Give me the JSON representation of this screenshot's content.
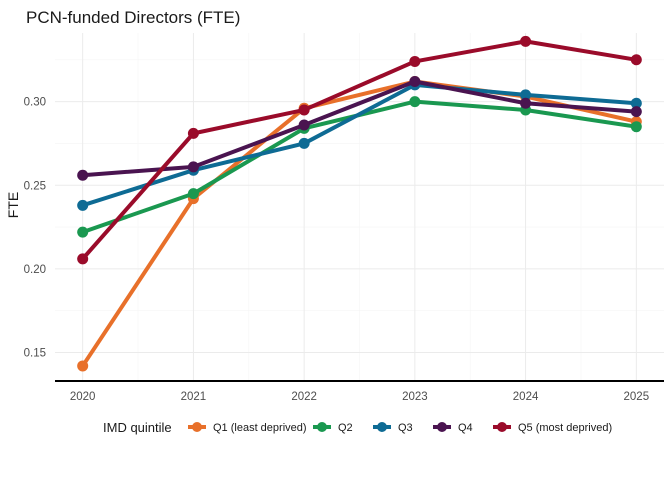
{
  "chart_data": {
    "type": "line",
    "title": "PCN-funded Directors (FTE)",
    "xlabel": "",
    "ylabel": "FTE",
    "x": [
      2020,
      2021,
      2022,
      2023,
      2024,
      2025
    ],
    "xlim": [
      2019.75,
      2025.25
    ],
    "ylim": [
      0.133,
      0.341
    ],
    "yticks": [
      0.15,
      0.2,
      0.25,
      0.3
    ],
    "ytick_labels": [
      "0.15",
      "0.20",
      "0.25",
      "0.30"
    ],
    "grid": true,
    "legend": {
      "title": "IMD quintile",
      "placement": "bottom"
    },
    "series": [
      {
        "name": "Q1 (least deprived)",
        "color": "#e8702a",
        "values": [
          0.142,
          0.242,
          0.296,
          0.312,
          0.303,
          0.288
        ]
      },
      {
        "name": "Q2",
        "color": "#1a9850",
        "values": [
          0.222,
          0.245,
          0.284,
          0.3,
          0.295,
          0.285
        ]
      },
      {
        "name": "Q3",
        "color": "#0e6b94",
        "values": [
          0.238,
          0.259,
          0.275,
          0.31,
          0.304,
          0.299
        ]
      },
      {
        "name": "Q4",
        "color": "#4a1450",
        "values": [
          0.256,
          0.261,
          0.286,
          0.312,
          0.299,
          0.294
        ]
      },
      {
        "name": "Q5 (most deprived)",
        "color": "#9a0b2a",
        "values": [
          0.206,
          0.281,
          0.295,
          0.324,
          0.336,
          0.325
        ]
      }
    ]
  }
}
